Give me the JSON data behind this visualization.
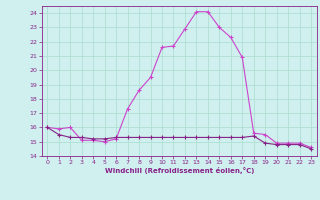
{
  "xlabel": "Windchill (Refroidissement éolien,°C)",
  "background_color": "#cff0ee",
  "grid_color": "#aaddcc",
  "line_color": "#cc44cc",
  "line_color2": "#882288",
  "xlim": [
    -0.5,
    23.5
  ],
  "ylim": [
    14,
    24.5
  ],
  "yticks": [
    14,
    15,
    16,
    17,
    18,
    19,
    20,
    21,
    22,
    23,
    24
  ],
  "xticks": [
    0,
    1,
    2,
    3,
    4,
    5,
    6,
    7,
    8,
    9,
    10,
    11,
    12,
    13,
    14,
    15,
    16,
    17,
    18,
    19,
    20,
    21,
    22,
    23
  ],
  "temp_x": [
    0,
    1,
    2,
    3,
    4,
    5,
    6,
    7,
    8,
    9,
    10,
    11,
    12,
    13,
    14,
    15,
    16,
    17,
    18,
    19,
    20,
    21,
    22,
    23
  ],
  "temp_y": [
    16,
    15.9,
    16.0,
    15.1,
    15.1,
    15.0,
    15.2,
    17.3,
    18.6,
    19.5,
    21.6,
    21.7,
    22.9,
    24.1,
    24.1,
    23.0,
    22.3,
    20.9,
    15.6,
    15.5,
    14.9,
    14.9,
    14.9,
    14.6
  ],
  "windchill_x": [
    0,
    1,
    2,
    3,
    4,
    5,
    6,
    7,
    8,
    9,
    10,
    11,
    12,
    13,
    14,
    15,
    16,
    17,
    18,
    19,
    20,
    21,
    22,
    23
  ],
  "windchill_y": [
    16,
    15.5,
    15.3,
    15.3,
    15.2,
    15.2,
    15.3,
    15.3,
    15.3,
    15.3,
    15.3,
    15.3,
    15.3,
    15.3,
    15.3,
    15.3,
    15.3,
    15.3,
    15.4,
    14.9,
    14.8,
    14.8,
    14.8,
    14.5
  ],
  "figsize": [
    3.2,
    2.0
  ],
  "dpi": 100
}
